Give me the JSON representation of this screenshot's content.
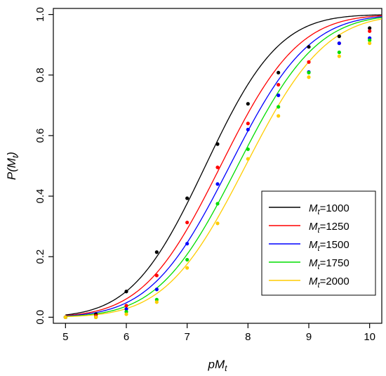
{
  "chart_data": {
    "type": "scatter",
    "xlabel": {
      "main": "pM",
      "sub": "t"
    },
    "ylabel": {
      "prefix": "P(M",
      "sub": "t",
      "suffix": ")"
    },
    "xlim": [
      4.8,
      10.2
    ],
    "ylim": [
      -0.02,
      1.02
    ],
    "x_ticks": [
      5,
      6,
      7,
      8,
      9,
      10
    ],
    "y_ticks": [
      0.0,
      0.2,
      0.4,
      0.6,
      0.8,
      1.0
    ],
    "y_tick_labels": [
      "0.0",
      "0.2",
      "0.4",
      "0.6",
      "0.8",
      "1.0"
    ],
    "grid": false,
    "legend_position": "bottom-right",
    "x": [
      5.0,
      5.5,
      6.0,
      6.5,
      7.0,
      7.5,
      8.0,
      8.5,
      9.0,
      9.5,
      10.0
    ],
    "series": [
      {
        "name": "1000",
        "color": "#000000",
        "points": [
          0.0,
          0.01,
          0.085,
          0.215,
          0.393,
          0.572,
          0.705,
          0.808,
          0.893,
          0.928,
          0.955
        ],
        "curve": {
          "mu": 7.3,
          "sigma": 0.95
        }
      },
      {
        "name": "1250",
        "color": "#ff0000",
        "points": [
          0.0,
          0.005,
          0.038,
          0.138,
          0.313,
          0.495,
          0.64,
          0.768,
          0.843,
          0.905,
          0.945
        ],
        "curve": {
          "mu": 7.55,
          "sigma": 1.0
        }
      },
      {
        "name": "1500",
        "color": "#0000ff",
        "points": [
          0.0,
          0.0,
          0.027,
          0.092,
          0.243,
          0.44,
          0.62,
          0.733,
          0.81,
          0.905,
          0.922
        ],
        "curve": {
          "mu": 7.7,
          "sigma": 1.02
        }
      },
      {
        "name": "1750",
        "color": "#00dd00",
        "points": [
          0.0,
          0.0,
          0.018,
          0.058,
          0.19,
          0.375,
          0.555,
          0.695,
          0.808,
          0.875,
          0.915
        ],
        "curve": {
          "mu": 7.83,
          "sigma": 1.02
        }
      },
      {
        "name": "2000",
        "color": "#ffcc00",
        "points": [
          0.0,
          0.0,
          0.01,
          0.05,
          0.163,
          0.31,
          0.523,
          0.665,
          0.793,
          0.862,
          0.905
        ],
        "curve": {
          "mu": 7.96,
          "sigma": 1.03
        }
      }
    ],
    "legend_label_prefix": {
      "main": "M",
      "sub": "t",
      "sep": "="
    }
  }
}
